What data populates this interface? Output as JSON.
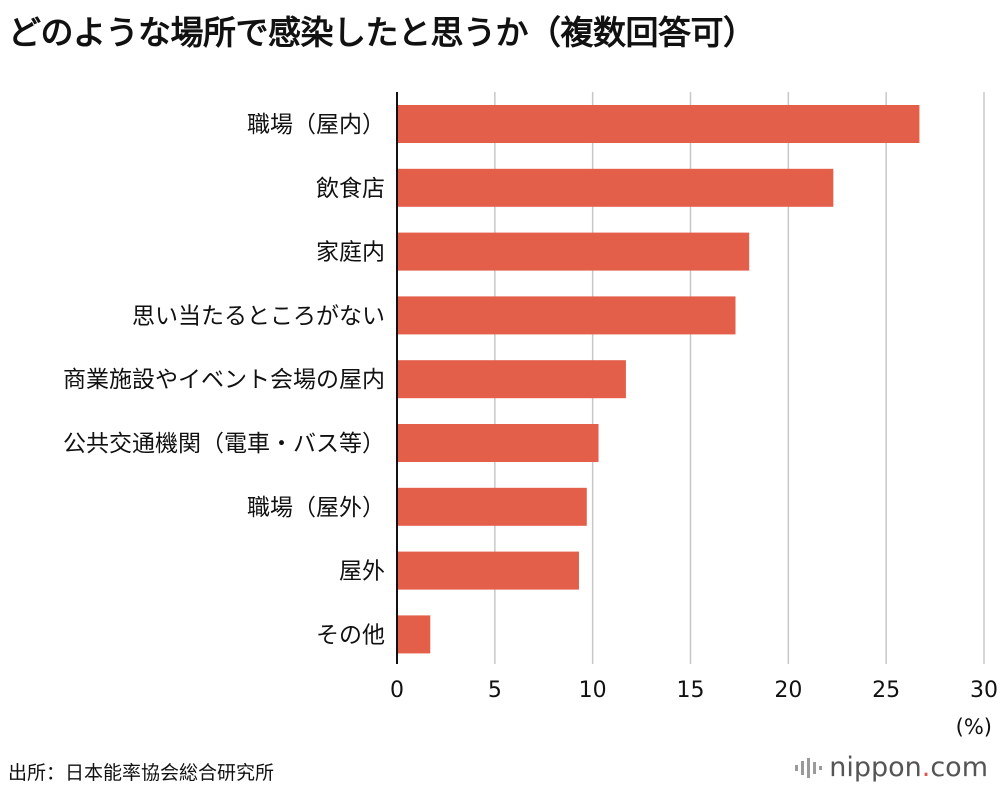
{
  "title": "どのような場所で感染したと思うか（複数回答可）",
  "source": "出所：日本能率協会総合研究所",
  "brand": {
    "name": "nippon",
    "dot": ".",
    "tld": "com"
  },
  "colors": {
    "bar": "#e45f4a",
    "grid": "#c8c8c8",
    "axis": "#111111"
  },
  "chart_data": {
    "type": "bar",
    "orientation": "horizontal",
    "categories": [
      "職場（屋内）",
      "飲食店",
      "家庭内",
      "思い当たるところがない",
      "商業施設やイベント会場の屋内",
      "公共交通機関（電車・バス等）",
      "職場（屋外）",
      "屋外",
      "その他"
    ],
    "values": [
      26.7,
      22.3,
      18.0,
      17.3,
      11.7,
      10.3,
      9.7,
      9.3,
      1.7
    ],
    "xlim": [
      0,
      30
    ],
    "xticks": [
      0,
      5,
      10,
      15,
      20,
      25,
      30
    ],
    "unit": "(%)",
    "grid": true
  }
}
